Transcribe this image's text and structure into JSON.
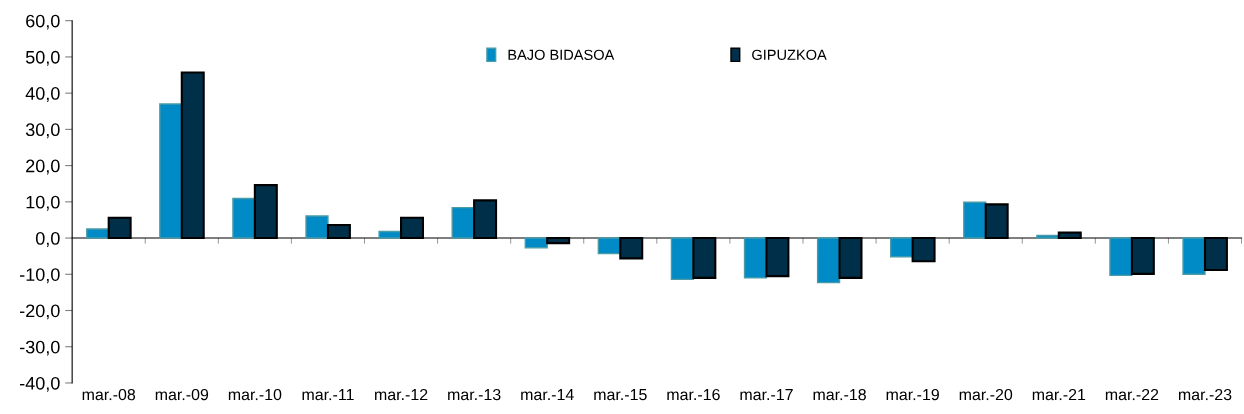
{
  "chart_data": {
    "type": "bar",
    "categories": [
      "mar.-08",
      "mar.-09",
      "mar.-10",
      "mar.-11",
      "mar.-12",
      "mar.-13",
      "mar.-14",
      "mar.-15",
      "mar.-16",
      "mar.-17",
      "mar.-18",
      "mar.-19",
      "mar.-20",
      "mar.-21",
      "mar.-22",
      "mar.-23"
    ],
    "series": [
      {
        "name": "BAJO BIDASOA",
        "color": "#008bc7",
        "values": [
          2.5,
          37.0,
          10.9,
          6.1,
          1.8,
          8.4,
          -2.7,
          -4.3,
          -11.4,
          -11.0,
          -12.3,
          -5.2,
          9.9,
          0.7,
          -10.3,
          -10.0
        ]
      },
      {
        "name": "GIPUZKOA",
        "color": "#003049",
        "values": [
          5.6,
          45.7,
          14.6,
          3.6,
          5.6,
          10.4,
          -1.4,
          -5.6,
          -11.0,
          -10.5,
          -11.0,
          -6.4,
          9.3,
          1.5,
          -9.9,
          -8.8
        ]
      }
    ],
    "ylim": [
      -40,
      60
    ],
    "yticks": [
      {
        "value": -40,
        "label": "-40,0"
      },
      {
        "value": -30,
        "label": "-30,0"
      },
      {
        "value": -20,
        "label": "-20,0"
      },
      {
        "value": -10,
        "label": "-10,0"
      },
      {
        "value": 0,
        "label": "0,0"
      },
      {
        "value": 10,
        "label": "10,0"
      },
      {
        "value": 20,
        "label": "20,0"
      },
      {
        "value": 30,
        "label": "30,0"
      },
      {
        "value": 40,
        "label": "40,0"
      },
      {
        "value": 50,
        "label": "50,0"
      },
      {
        "value": 60,
        "label": "60,0"
      }
    ],
    "legend": "top"
  }
}
